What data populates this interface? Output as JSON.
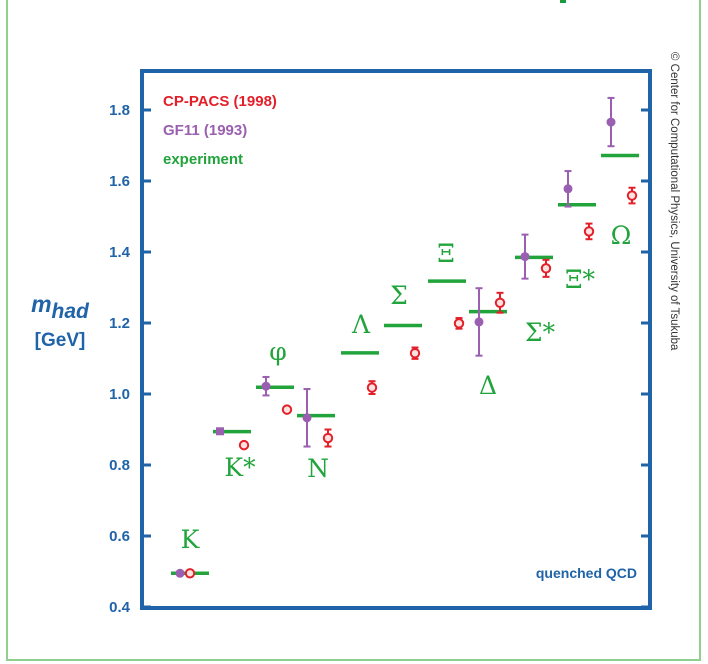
{
  "chart_data": {
    "type": "scatter",
    "title": "",
    "ylabel_symbol": "m",
    "ylabel_subscript": "had",
    "ylabel_unit": "[GeV]",
    "xlabel": "",
    "ylim": [
      0.4,
      1.9
    ],
    "yticks": [
      "0.4",
      "0.6",
      "0.8",
      "1.0",
      "1.2",
      "1.4",
      "1.6",
      "1.8"
    ],
    "ytick_values": [
      0.4,
      0.6,
      0.8,
      1.0,
      1.2,
      1.4,
      1.6,
      1.8
    ],
    "grid": false,
    "legend_position": "top-left",
    "legend": [
      {
        "label": "CP-PACS (1998)",
        "color": "#e3202a"
      },
      {
        "label": "GF11 (1993)",
        "color": "#9a5fb0"
      },
      {
        "label": "experiment",
        "color": "#22a43c"
      }
    ],
    "annotation": "quenched QCD",
    "credit": "© Center for Computational Physics, University of Tsukuba",
    "colors": {
      "axis": "#1f63a8",
      "cppacs": "#e3202a",
      "gf11": "#9a5fb0",
      "experiment": "#22a43c"
    },
    "particles": [
      "K",
      "K*",
      "φ",
      "N",
      "Λ",
      "Σ",
      "Ξ",
      "Δ",
      "Σ*",
      "Ξ*",
      "Ω"
    ],
    "experiment": [
      {
        "particle": "K",
        "mass": 0.495
      },
      {
        "particle": "K*",
        "mass": 0.894
      },
      {
        "particle": "φ",
        "mass": 1.019
      },
      {
        "particle": "N",
        "mass": 0.939
      },
      {
        "particle": "Λ",
        "mass": 1.116
      },
      {
        "particle": "Σ",
        "mass": 1.193
      },
      {
        "particle": "Ξ",
        "mass": 1.318
      },
      {
        "particle": "Δ",
        "mass": 1.232
      },
      {
        "particle": "Σ*",
        "mass": 1.385
      },
      {
        "particle": "Ξ*",
        "mass": 1.533
      },
      {
        "particle": "Ω",
        "mass": 1.672
      }
    ],
    "cp_pacs": [
      {
        "particle": "K",
        "mass": 0.495,
        "err": 0.0
      },
      {
        "particle": "K*",
        "mass": 0.856,
        "err": 0.004
      },
      {
        "particle": "φ",
        "mass": 0.956,
        "err": 0.008
      },
      {
        "particle": "N",
        "mass": 0.876,
        "err": 0.024
      },
      {
        "particle": "Λ",
        "mass": 1.018,
        "err": 0.018
      },
      {
        "particle": "Σ",
        "mass": 1.115,
        "err": 0.016
      },
      {
        "particle": "Ξ",
        "mass": 1.199,
        "err": 0.015
      },
      {
        "particle": "Δ",
        "mass": 1.257,
        "err": 0.028
      },
      {
        "particle": "Σ*",
        "mass": 1.354,
        "err": 0.024
      },
      {
        "particle": "Ξ*",
        "mass": 1.458,
        "err": 0.022
      },
      {
        "particle": "Ω",
        "mass": 1.559,
        "err": 0.022
      }
    ],
    "gf11": [
      {
        "particle": "K",
        "mass": 0.495,
        "err": 0.0
      },
      {
        "particle": "K*",
        "mass": 0.895,
        "err": 0.0
      },
      {
        "particle": "φ",
        "mass": 1.022,
        "err": 0.026
      },
      {
        "particle": "N",
        "mass": 0.933,
        "err": 0.081
      },
      {
        "particle": "Δ",
        "mass": 1.203,
        "err": 0.095
      },
      {
        "particle": "Σ*",
        "mass": 1.387,
        "err": 0.062
      },
      {
        "particle": "Ξ*",
        "mass": 1.578,
        "err": 0.05
      },
      {
        "particle": "Ω",
        "mass": 1.766,
        "err": 0.068
      }
    ]
  }
}
